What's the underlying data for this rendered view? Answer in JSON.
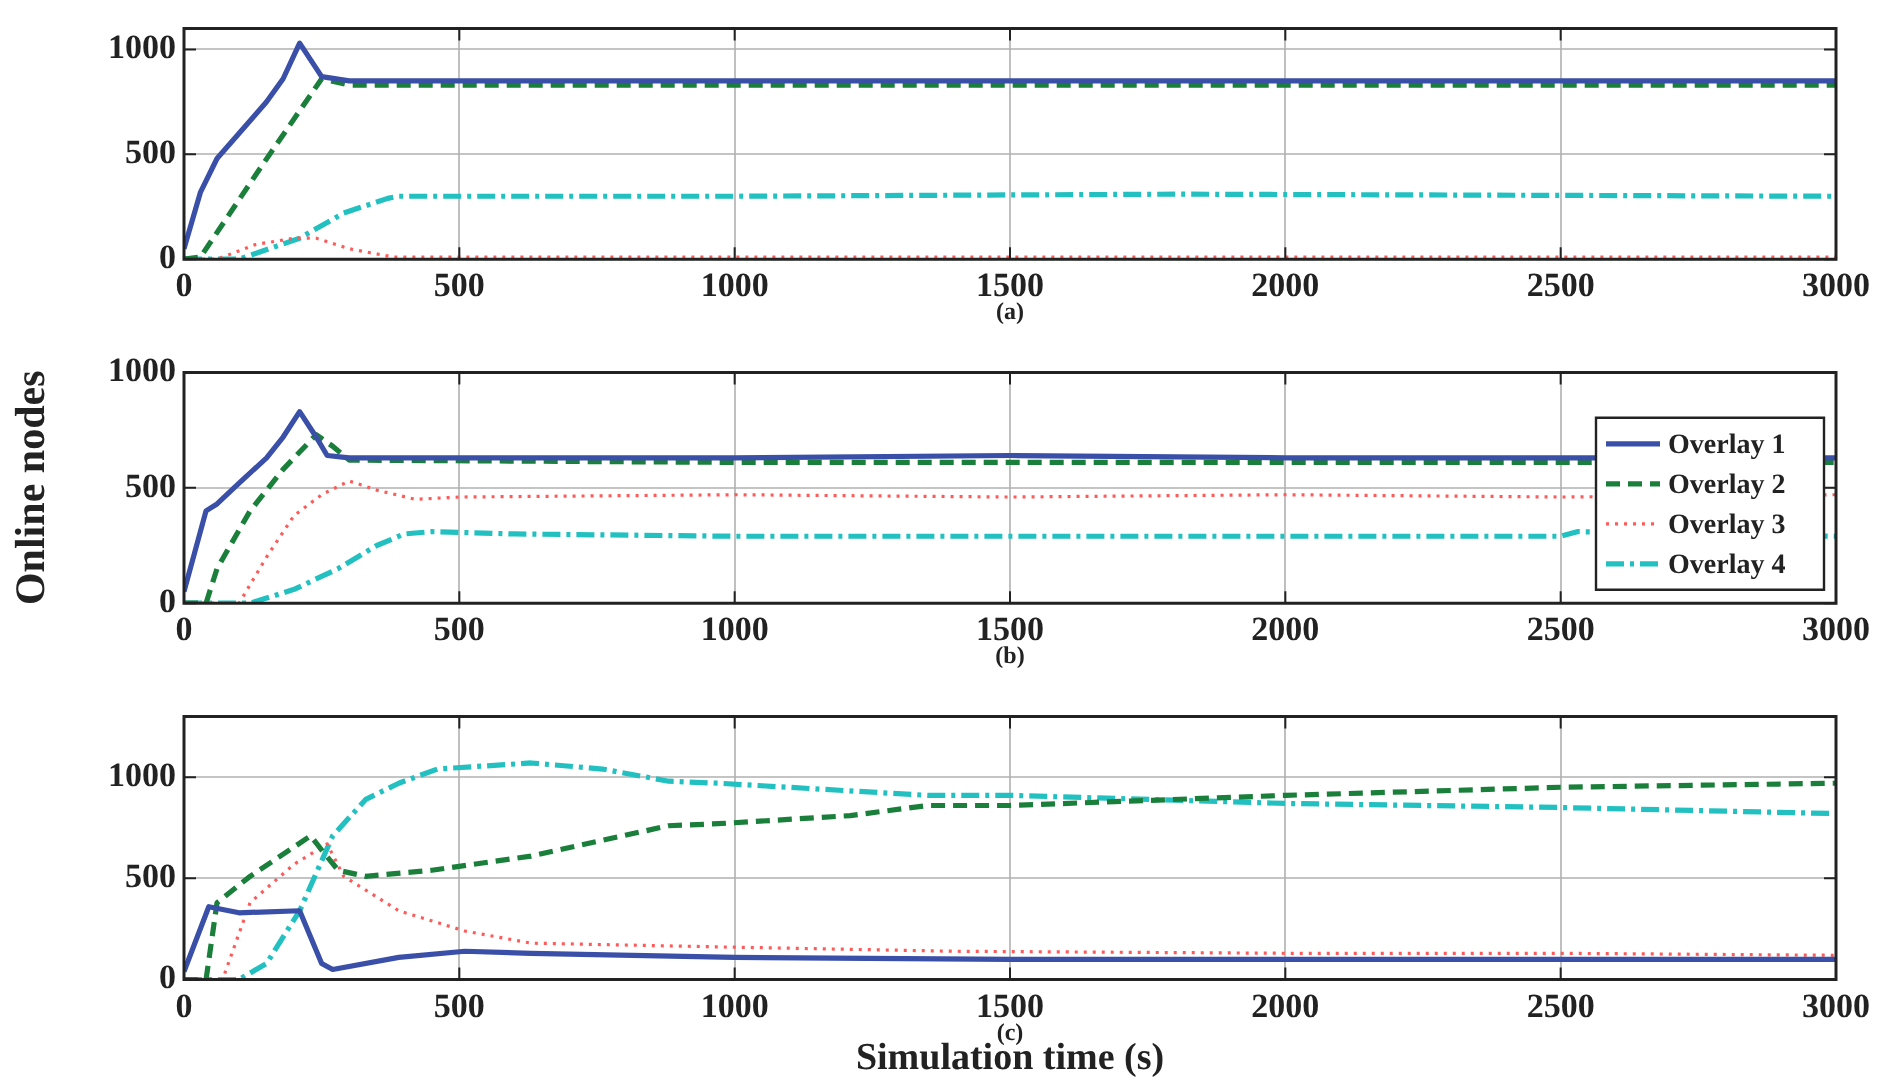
{
  "chart_data": [
    {
      "type": "line",
      "annotations": [
        "(a)"
      ],
      "xlim": [
        0,
        3000
      ],
      "xticks": [
        0,
        500,
        1000,
        1500,
        2000,
        2500,
        3000
      ],
      "ylim": [
        0,
        1100
      ],
      "yticks": [
        0,
        500,
        1000
      ],
      "grid": true,
      "marker": "none",
      "series": [
        {
          "color": "#3a4fa8",
          "line_style": "solid",
          "x": [
            0,
            30,
            60,
            150,
            180,
            210,
            250,
            300,
            600,
            1000,
            1500,
            2000,
            2500,
            3000
          ],
          "values": [
            50,
            320,
            480,
            750,
            860,
            1030,
            870,
            850,
            850,
            850,
            850,
            850,
            850,
            850
          ]
        },
        {
          "color": "#1a7f3a",
          "line_style": "dashed",
          "x": [
            0,
            30,
            140,
            250,
            300,
            1000,
            2000,
            3000
          ],
          "values": [
            0,
            10,
            440,
            860,
            830,
            830,
            830,
            830
          ]
        },
        {
          "color": "#ff5a5a",
          "line_style": "dotted",
          "x": [
            0,
            60,
            130,
            200,
            240,
            300,
            380,
            1000,
            2000,
            3000
          ],
          "values": [
            0,
            0,
            70,
            100,
            100,
            50,
            10,
            10,
            10,
            10
          ]
        },
        {
          "color": "#22c0c0",
          "line_style": "dashdot",
          "x": [
            0,
            100,
            210,
            290,
            370,
            390,
            1000,
            1800,
            3000
          ],
          "values": [
            0,
            0,
            100,
            220,
            290,
            300,
            300,
            310,
            300
          ]
        }
      ]
    },
    {
      "type": "line",
      "ylabel": "Online nodes",
      "annotations": [
        "(b)"
      ],
      "legend": "right",
      "xlim": [
        0,
        3000
      ],
      "xticks": [
        0,
        500,
        1000,
        1500,
        2000,
        2500,
        3000
      ],
      "ylim": [
        0,
        1000
      ],
      "yticks": [
        0,
        500,
        1000
      ],
      "grid": true,
      "marker": "none",
      "series": [
        {
          "name": "Overlay 1",
          "color": "#3a4fa8",
          "line_style": "solid",
          "x": [
            0,
            40,
            60,
            100,
            150,
            180,
            210,
            240,
            260,
            300,
            1000,
            1500,
            2000,
            2500,
            3000
          ],
          "values": [
            50,
            400,
            430,
            520,
            630,
            720,
            830,
            720,
            640,
            630,
            630,
            640,
            630,
            630,
            630
          ]
        },
        {
          "name": "Overlay 2",
          "color": "#1a7f3a",
          "line_style": "dashed",
          "x": [
            0,
            40,
            60,
            120,
            180,
            240,
            270,
            300,
            1000,
            2000,
            3000
          ],
          "values": [
            0,
            0,
            150,
            400,
            580,
            730,
            680,
            620,
            610,
            610,
            610
          ]
        },
        {
          "name": "Overlay 3",
          "color": "#ff5a5a",
          "line_style": "dotted",
          "x": [
            0,
            100,
            150,
            200,
            250,
            300,
            350,
            420,
            500,
            1000,
            1500,
            2000,
            2500,
            3000
          ],
          "values": [
            0,
            0,
            200,
            380,
            470,
            530,
            490,
            450,
            460,
            470,
            460,
            470,
            460,
            470
          ]
        },
        {
          "name": "Overlay 4",
          "color": "#22c0c0",
          "line_style": "dashdot",
          "x": [
            0,
            120,
            200,
            280,
            350,
            400,
            450,
            600,
            1000,
            2500,
            2530,
            3000
          ],
          "values": [
            0,
            0,
            60,
            150,
            250,
            300,
            310,
            300,
            290,
            290,
            310,
            290
          ]
        }
      ]
    },
    {
      "type": "line",
      "xlabel": "Simulation time (s)",
      "annotations": [
        "(c)"
      ],
      "xlim": [
        0,
        3000
      ],
      "xticks": [
        0,
        500,
        1000,
        1500,
        2000,
        2500,
        3000
      ],
      "ylim": [
        0,
        1300
      ],
      "yticks": [
        0,
        500,
        1000
      ],
      "grid": true,
      "marker": "none",
      "series": [
        {
          "color": "#3a4fa8",
          "line_style": "solid",
          "x": [
            0,
            45,
            100,
            210,
            250,
            270,
            390,
            510,
            630,
            1000,
            1500,
            2000,
            2500,
            3000
          ],
          "values": [
            40,
            360,
            330,
            340,
            80,
            50,
            110,
            140,
            130,
            110,
            100,
            100,
            100,
            100
          ]
        },
        {
          "color": "#1a7f3a",
          "line_style": "dashed",
          "x": [
            0,
            40,
            60,
            120,
            230,
            250,
            280,
            330,
            450,
            630,
            880,
            970,
            1210,
            1350,
            1500,
            2000,
            2500,
            3000
          ],
          "values": [
            0,
            0,
            380,
            510,
            710,
            640,
            540,
            510,
            540,
            610,
            760,
            770,
            810,
            860,
            860,
            910,
            950,
            970
          ]
        },
        {
          "color": "#ff5a5a",
          "line_style": "dotted",
          "x": [
            0,
            70,
            120,
            200,
            260,
            290,
            390,
            510,
            630,
            1000,
            1400,
            2000,
            2500,
            3000
          ],
          "values": [
            0,
            0,
            380,
            570,
            670,
            510,
            340,
            240,
            180,
            160,
            140,
            130,
            130,
            120
          ]
        },
        {
          "color": "#22c0c0",
          "line_style": "dashdot",
          "x": [
            0,
            100,
            150,
            210,
            270,
            330,
            390,
            460,
            630,
            760,
            880,
            970,
            1350,
            1500,
            2000,
            2500,
            3000
          ],
          "values": [
            0,
            0,
            80,
            340,
            710,
            890,
            970,
            1040,
            1070,
            1040,
            980,
            970,
            910,
            910,
            870,
            850,
            820
          ]
        }
      ]
    }
  ]
}
